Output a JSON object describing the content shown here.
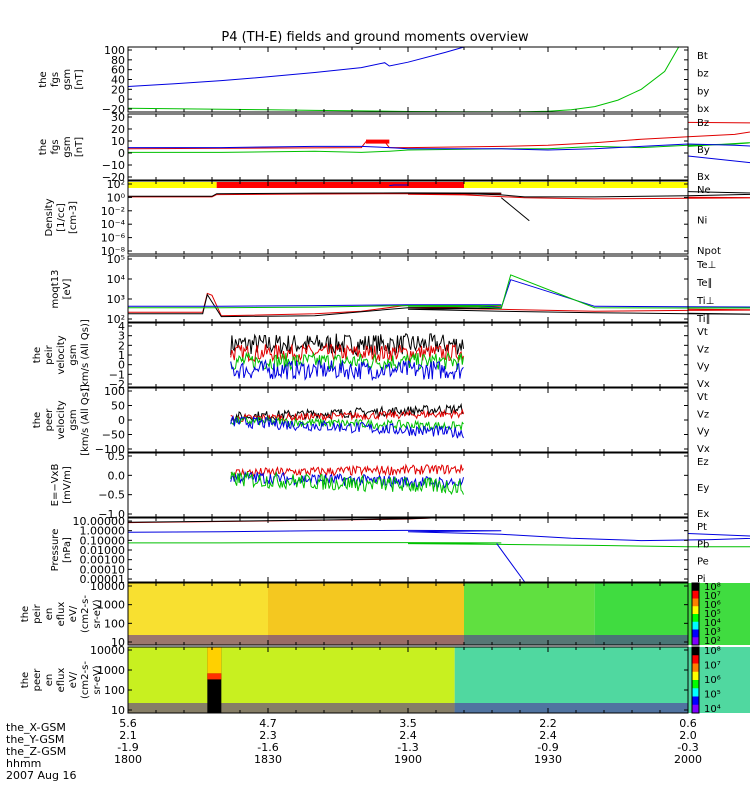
{
  "title": "P4 (TH-E) fields and ground moments overview",
  "footer": {
    "rows": [
      {
        "label": "the_X-GSM",
        "values": [
          "5.6",
          "4.7",
          "3.5",
          "2.2",
          "0.6"
        ]
      },
      {
        "label": "the_Y-GSM",
        "values": [
          "2.1",
          "2.3",
          "2.4",
          "2.4",
          "2.0"
        ]
      },
      {
        "label": "the_Z-GSM",
        "values": [
          "-1.9",
          "-1.6",
          "-1.3",
          "-0.9",
          "-0.3"
        ]
      },
      {
        "label": "hhmm",
        "values": [
          "1800",
          "1830",
          "1900",
          "1930",
          "2000"
        ]
      }
    ],
    "date": "2007 Aug 16"
  },
  "chart_data": [
    {
      "type": "line",
      "ylabel": "the fgs gsm [nT]",
      "ylabel_lines": [
        "the",
        "fgs",
        "gsm",
        "[nT]"
      ],
      "ylim": [
        -20,
        100
      ],
      "y_ticks": [
        "100",
        "80",
        "60",
        "40",
        "20",
        "0",
        "−20"
      ],
      "legend": [
        {
          "name": "Bt",
          "color": "#000000"
        },
        {
          "name": "bz",
          "color": "#e00000"
        },
        {
          "name": "by",
          "color": "#00c000"
        },
        {
          "name": "bx",
          "color": "#0000e0"
        }
      ],
      "series": [
        {
          "name": "bx",
          "color": "#0000e0",
          "x": [
            1800,
            1810,
            1820,
            1830,
            1840,
            1850,
            1855,
            1856,
            1860,
            1868,
            1872
          ],
          "y": [
            27,
            32,
            38,
            45,
            53,
            62,
            71,
            65,
            72,
            90,
            100
          ]
        },
        {
          "name": "by",
          "color": "#00c000",
          "x": [
            1800,
            1810,
            1820,
            1830,
            1840,
            1850,
            1900,
            1910,
            1920,
            1925,
            1930,
            1935,
            1940,
            1945,
            1950,
            1955,
            1958
          ],
          "y": [
            -13,
            -14,
            -15,
            -16,
            -17,
            -18,
            -19,
            -19.5,
            -19.8,
            -19.5,
            -18.5,
            -16,
            -10,
            2,
            22,
            55,
            100
          ]
        }
      ]
    },
    {
      "type": "line",
      "ylabel": "the fgs gsm [nT]",
      "ylabel_lines": [
        "the",
        "fgs",
        "gsm",
        "[nT]"
      ],
      "ylim": [
        -25,
        30
      ],
      "y_ticks": [
        "30",
        "20",
        "10",
        "0",
        "−10",
        "−20"
      ],
      "legend": [
        {
          "name": "Bz",
          "color": "#e00000"
        },
        {
          "name": "By",
          "color": "#00c000"
        },
        {
          "name": "Bx",
          "color": "#0000e0"
        }
      ],
      "series": [
        {
          "name": "Bz",
          "color": "#e00000",
          "x": [
            1800,
            1850,
            1851,
            1855,
            1856,
            1900,
            1920,
            1930,
            1940,
            1950,
            1960,
            1970,
            1975,
            1980,
            1990,
            2000
          ],
          "y": [
            1,
            2,
            7,
            7,
            2,
            2,
            3,
            4,
            6,
            9,
            11,
            13,
            16,
            18,
            22,
            23
          ]
        },
        {
          "name": "By",
          "color": "#00c000",
          "x": [
            1800,
            1820,
            1840,
            1850,
            1856,
            1900,
            1920,
            1930,
            1940,
            1950,
            1960,
            1970,
            1980,
            1990,
            2000
          ],
          "y": [
            -2,
            -2,
            -1,
            -2,
            -1,
            0,
            1,
            1,
            3,
            2,
            4,
            5,
            8,
            10,
            3
          ]
        },
        {
          "name": "Bx",
          "color": "#0000e0",
          "x": [
            1800,
            1820,
            1840,
            1850,
            1856,
            1900,
            1920,
            1930,
            1940,
            1950,
            1960,
            1970,
            1980,
            1990,
            1996,
            2000
          ],
          "y": [
            2,
            2,
            3,
            3,
            2,
            1,
            1,
            0,
            1,
            3,
            5,
            4,
            2,
            -4,
            -20,
            -5
          ]
        }
      ],
      "markers": [
        {
          "label": "red data-quality bar",
          "color": "#ff0000",
          "x": [
            1851,
            1856
          ],
          "y": 7
        }
      ]
    },
    {
      "type": "line",
      "ylabel": "Density [1/cc] [cm-3]",
      "ylabel_lines": [
        "Density",
        "[1/cc]",
        "[cm-3]"
      ],
      "yscale": "log",
      "ylim": [
        1e-09,
        100
      ],
      "y_ticks": [
        "10²",
        "10⁰",
        "10⁻²",
        "10⁻⁴",
        "10⁻⁶",
        "10⁻⁸"
      ],
      "legend": [
        {
          "name": "Ne",
          "color": "#e00000"
        },
        {
          "name": "Ni",
          "color": "#000000"
        },
        {
          "name": "Npot",
          "color": "#0000e0"
        }
      ],
      "status_bar": [
        {
          "from": 1800,
          "to": 1819,
          "color": "#ffff00"
        },
        {
          "from": 1819,
          "to": 1912,
          "color": "#ff0000"
        },
        {
          "from": 1912,
          "to": 2000,
          "color": "#ffff00"
        }
      ],
      "series": [
        {
          "name": "Ne",
          "color": "#e00000",
          "x": [
            1800,
            1818,
            1819,
            1840,
            1860,
            1880,
            1900,
            1912,
            1925,
            1940,
            1960,
            1980,
            2000
          ],
          "y": [
            0.4,
            0.4,
            0.9,
            1.1,
            1.2,
            1.1,
            1.0,
            0.8,
            0.3,
            0.2,
            0.25,
            0.3,
            0.35
          ]
        },
        {
          "name": "Ni",
          "color": "#000000",
          "x": [
            1800,
            1818,
            1819,
            1840,
            1860,
            1880,
            1900,
            1912,
            1920,
            1925,
            1940,
            1960,
            1980,
            2000
          ],
          "y": [
            0.5,
            0.5,
            1.2,
            1.5,
            1.6,
            1.5,
            1.4,
            1.3,
            0.8,
            0.4,
            0.4,
            0.6,
            1.2,
            2.5
          ]
        },
        {
          "name": "Npot",
          "color": "#0000e0",
          "x": [
            1856,
            1857,
            1900
          ],
          "y": [
            20,
            25,
            25
          ]
        },
        {
          "name": "Npot-drop",
          "color": "#000000",
          "x": [
            1920,
            1926
          ],
          "y": [
            0.3,
            0.0001
          ]
        }
      ]
    },
    {
      "type": "line",
      "ylabel": "moqt13 [eV]",
      "ylabel_lines": [
        "moqt13",
        "[eV]"
      ],
      "yscale": "log",
      "ylim": [
        60,
        100000
      ],
      "y_ticks": [
        "10⁵",
        "10⁴",
        "10³",
        "10²"
      ],
      "legend": [
        {
          "name": "Te⊥",
          "color": "#e00000"
        },
        {
          "name": "Te∥",
          "color": "#000000"
        },
        {
          "name": "Ti⊥",
          "color": "#0000e0"
        },
        {
          "name": "Ti∥",
          "color": "#00c000"
        }
      ],
      "series": [
        {
          "name": "Te⊥",
          "color": "#e00000",
          "x": [
            1800,
            1816,
            1817,
            1818,
            1820,
            1840,
            1850,
            1860,
            1880,
            1900,
            1920,
            1940,
            1960,
            1980,
            2000
          ],
          "y": [
            180,
            180,
            1500,
            1200,
            120,
            150,
            200,
            400,
            350,
            300,
            250,
            200,
            220,
            230,
            250
          ]
        },
        {
          "name": "Te∥",
          "color": "#000000",
          "x": [
            1800,
            1816,
            1817,
            1820,
            1840,
            1860,
            1880,
            1900,
            1920,
            1940,
            1960,
            1980,
            2000
          ],
          "y": [
            150,
            150,
            1300,
            110,
            120,
            300,
            280,
            250,
            200,
            170,
            150,
            140,
            160
          ]
        },
        {
          "name": "Ti⊥",
          "color": "#0000e0",
          "x": [
            1800,
            1820,
            1840,
            1860,
            1880,
            1900,
            1915,
            1920,
            1922,
            1940,
            1960,
            1980,
            2000
          ],
          "y": [
            350,
            350,
            380,
            420,
            420,
            400,
            380,
            300,
            7000,
            350,
            330,
            320,
            330
          ]
        },
        {
          "name": "Ti∥",
          "color": "#00c000",
          "x": [
            1800,
            1820,
            1840,
            1860,
            1880,
            1900,
            1915,
            1920,
            1922,
            1940,
            1960,
            1980,
            2000
          ],
          "y": [
            300,
            300,
            320,
            380,
            380,
            350,
            330,
            280,
            12000,
            300,
            290,
            290,
            300
          ]
        }
      ]
    },
    {
      "type": "line",
      "ylabel": "the peir velocity gsm [km/s (All Qs)]",
      "ylabel_lines": [
        "the",
        "peir",
        "velocity",
        "gsm",
        "[km/s (All Qs)]"
      ],
      "ylim": [
        -2,
        4
      ],
      "y_ticks": [
        "4",
        "3",
        "2",
        "1",
        "0",
        "−1",
        "−2"
      ],
      "legend": [
        {
          "name": "Vt",
          "color": "#000000"
        },
        {
          "name": "Vz",
          "color": "#e00000"
        },
        {
          "name": "Vy",
          "color": "#00c000"
        },
        {
          "name": "Vx",
          "color": "#0000e0"
        }
      ],
      "x_range": [
        1822,
        1912
      ],
      "series": [
        {
          "name": "Vt",
          "color": "#000000",
          "level": 2.0,
          "noise": 1.0
        },
        {
          "name": "Vz",
          "color": "#e00000",
          "level": 1.2,
          "noise": 0.8
        },
        {
          "name": "Vy",
          "color": "#00c000",
          "level": 0.4,
          "noise": 0.8
        },
        {
          "name": "Vx",
          "color": "#0000e0",
          "level": -0.4,
          "noise": 0.9
        }
      ]
    },
    {
      "type": "line",
      "ylabel": "the peer velocity gsm [km/s (All Qs)]",
      "ylabel_lines": [
        "the",
        "peer",
        "velocity",
        "gsm",
        "[km/s (All Qs)]"
      ],
      "ylim": [
        -100,
        100
      ],
      "y_ticks": [
        "100",
        "50",
        "0",
        "−50",
        "−100"
      ],
      "legend": [
        {
          "name": "Vt",
          "color": "#000000"
        },
        {
          "name": "Vz",
          "color": "#e00000"
        },
        {
          "name": "Vy",
          "color": "#00c000"
        },
        {
          "name": "Vx",
          "color": "#0000e0"
        }
      ],
      "x_range": [
        1822,
        1912
      ],
      "series": [
        {
          "name": "Vt",
          "color": "#000000",
          "level": 10,
          "level_end": 35,
          "noise": 15
        },
        {
          "name": "Vz",
          "color": "#e00000",
          "level": 5,
          "level_end": 20,
          "noise": 12
        },
        {
          "name": "Vy",
          "color": "#00c000",
          "level": -2,
          "level_end": -20,
          "noise": 14
        },
        {
          "name": "Vx",
          "color": "#0000e0",
          "level": -5,
          "level_end": -40,
          "noise": 18
        }
      ]
    },
    {
      "type": "line",
      "ylabel": "E=−VxB [mV/m]",
      "ylabel_lines": [
        "E=−VxB",
        "[mV/m]"
      ],
      "ylim": [
        -1.1,
        0.5
      ],
      "y_ticks": [
        "0.5",
        "0.0",
        "−0.5",
        "−1.0"
      ],
      "legend": [
        {
          "name": "Ez",
          "color": "#e00000"
        },
        {
          "name": "Ey",
          "color": "#00c000"
        },
        {
          "name": "Ex",
          "color": "#0000e0"
        }
      ],
      "x_range": [
        1822,
        1912
      ],
      "series": [
        {
          "name": "Ez",
          "color": "#e00000",
          "level": 0.0,
          "level_end": 0.1,
          "noise": 0.12
        },
        {
          "name": "Ex",
          "color": "#0000e0",
          "level": -0.1,
          "level_end": -0.25,
          "noise": 0.15
        },
        {
          "name": "Ey",
          "color": "#00c000",
          "level": -0.15,
          "level_end": -0.35,
          "noise": 0.2
        }
      ]
    },
    {
      "type": "line",
      "ylabel": "Pressure [nPa]",
      "ylabel_lines": [
        "Pressure",
        "[nPa]"
      ],
      "yscale": "log",
      "ylim": [
        1e-05,
        20
      ],
      "y_ticks": [
        "10.00000",
        "1.00000",
        "0.10000",
        "0.01000",
        "0.00100",
        "0.00010",
        "0.00001"
      ],
      "legend": [
        {
          "name": "Pt",
          "color": "#000000"
        },
        {
          "name": "Pb",
          "color": "#e00000"
        },
        {
          "name": "Pe",
          "color": "#00c000"
        },
        {
          "name": "Pi",
          "color": "#0000e0"
        }
      ],
      "series": [
        {
          "name": "Pb",
          "color": "#e00000",
          "x": [
            1800,
            1820,
            1840,
            1860,
            1865
          ],
          "y": [
            7,
            9,
            12,
            16,
            20
          ]
        },
        {
          "name": "Pt",
          "color": "#000000",
          "x": [
            1800,
            1820,
            1840,
            1860,
            1865
          ],
          "y": [
            7.5,
            9.5,
            12.5,
            17,
            21
          ]
        },
        {
          "name": "Pi",
          "color": "#0000e0",
          "x": [
            1800,
            1820,
            1840,
            1860,
            1880,
            1900,
            1920,
            1935,
            1950,
            1965,
            1980,
            2000
          ],
          "y": [
            0.8,
            0.9,
            1.1,
            1.2,
            1.1,
            0.9,
            0.5,
            0.2,
            0.12,
            0.15,
            0.25,
            0.6
          ]
        },
        {
          "name": "Pe",
          "color": "#00c000",
          "x": [
            1800,
            1820,
            1840,
            1860,
            1880,
            1900,
            1920,
            1940,
            1960,
            1980,
            2000
          ],
          "y": [
            0.07,
            0.07,
            0.075,
            0.075,
            0.07,
            0.06,
            0.05,
            0.04,
            0.03,
            0.03,
            0.03
          ]
        },
        {
          "name": "Pi-drop",
          "color": "#0000e0",
          "x": [
            1919,
            1925
          ],
          "y": [
            0.06,
            1e-05
          ]
        }
      ]
    },
    {
      "type": "heatmap",
      "ylabel": "the peir en eflux eV/(cm2-s-sr-eV)",
      "ylabel_lines": [
        "the",
        "peir",
        "en",
        "eflux",
        "eV/",
        "(cm2-s-",
        "sr-eV)"
      ],
      "yscale": "log",
      "ylim": [
        7,
        20000
      ],
      "y_ticks": [
        "10000",
        "1000",
        "100",
        "10"
      ],
      "colorbar_ticks": [
        "10⁸",
        "10⁷",
        "10⁶",
        "10⁵",
        "10⁴",
        "10³",
        "10²"
      ],
      "regions": [
        {
          "from": 1800,
          "to": 1912,
          "color": "#f8e030"
        },
        {
          "from": 1830,
          "to": 1880,
          "color": "#f4c820"
        },
        {
          "from": 1912,
          "to": 1940,
          "color": "#60e040"
        },
        {
          "from": 1940,
          "to": 1975,
          "color": "#40dc40"
        },
        {
          "from": 1975,
          "to": 2000,
          "color": "#b0f030"
        }
      ]
    },
    {
      "type": "heatmap",
      "ylabel": "the peer en eflux eV/(cm2-s-sr-eV)",
      "ylabel_lines": [
        "the",
        "peer",
        "en",
        "eflux",
        "eV/",
        "(cm2-s-",
        "sr-eV)"
      ],
      "yscale": "log",
      "ylim": [
        7,
        20000
      ],
      "y_ticks": [
        "10000",
        "1000",
        "100",
        "10"
      ],
      "colorbar_ticks": [
        "10⁸",
        "10⁷",
        "10⁶",
        "10⁵",
        "10⁴"
      ],
      "regions": [
        {
          "from": 1800,
          "to": 1910,
          "color": "#c8f020"
        },
        {
          "from": 1910,
          "to": 1985,
          "color": "#50d8a0"
        },
        {
          "from": 1985,
          "to": 2000,
          "color": "#b8f030"
        }
      ],
      "black_strip": [
        1817,
        1820
      ]
    }
  ]
}
